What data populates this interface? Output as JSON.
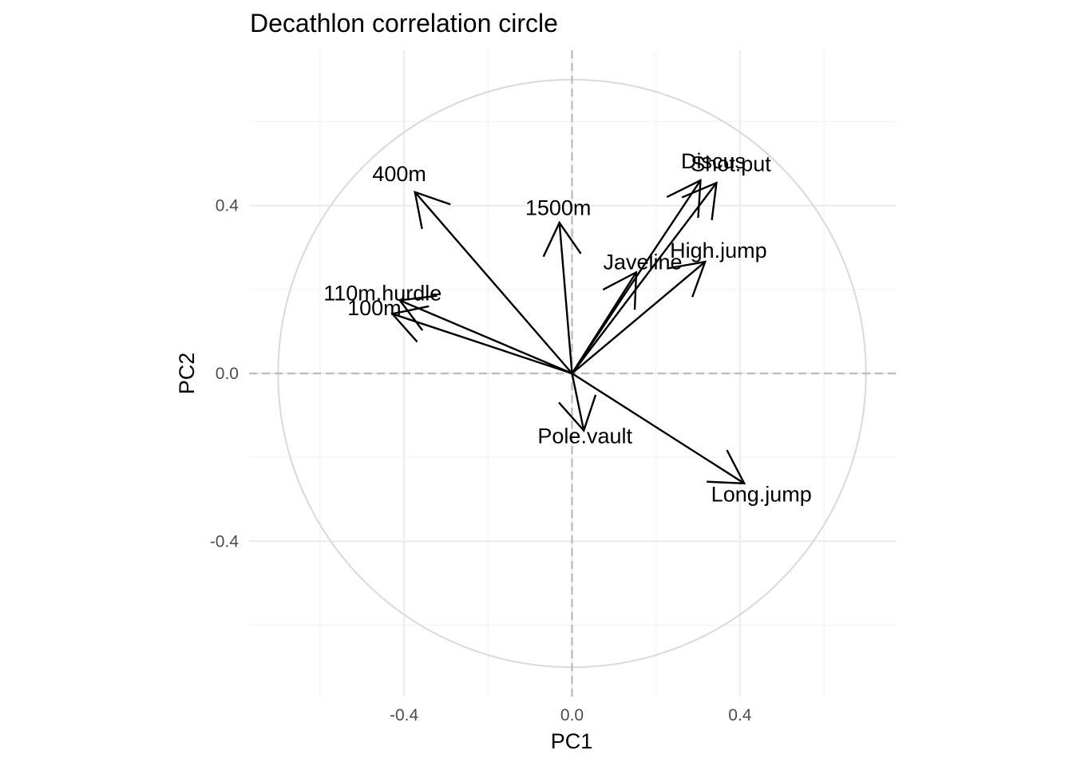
{
  "chart_data": {
    "type": "scatter",
    "title": "Decathlon correlation circle",
    "xlabel": "PC1",
    "ylabel": "PC2",
    "xlim": [
      -0.77,
      0.77
    ],
    "ylim": [
      -0.77,
      0.77
    ],
    "x_ticks": [
      -0.4,
      0.0,
      0.4
    ],
    "y_ticks": [
      -0.4,
      0.0,
      0.4
    ],
    "x_tick_labels": [
      "-0.4",
      "0.0",
      "0.4"
    ],
    "y_tick_labels": [
      "-0.4",
      "0.0",
      "0.4"
    ],
    "grid": true,
    "circle_radius": 0.7,
    "reference_lines": {
      "x": 0,
      "y": 0,
      "style": "dashed"
    },
    "vectors": [
      {
        "name": "100m",
        "x": -0.428,
        "y": 0.142
      },
      {
        "name": "Long.jump",
        "x": 0.41,
        "y": -0.262
      },
      {
        "name": "Shot.put",
        "x": 0.344,
        "y": 0.454
      },
      {
        "name": "High.jump",
        "x": 0.317,
        "y": 0.266
      },
      {
        "name": "400m",
        "x": -0.374,
        "y": 0.432
      },
      {
        "name": "110m.hurdle",
        "x": -0.41,
        "y": 0.174
      },
      {
        "name": "Discus",
        "x": 0.306,
        "y": 0.46
      },
      {
        "name": "Pole.vault",
        "x": 0.028,
        "y": -0.136
      },
      {
        "name": "Javeline",
        "x": 0.153,
        "y": 0.241
      },
      {
        "name": "1500m",
        "x": -0.03,
        "y": 0.359
      }
    ]
  }
}
